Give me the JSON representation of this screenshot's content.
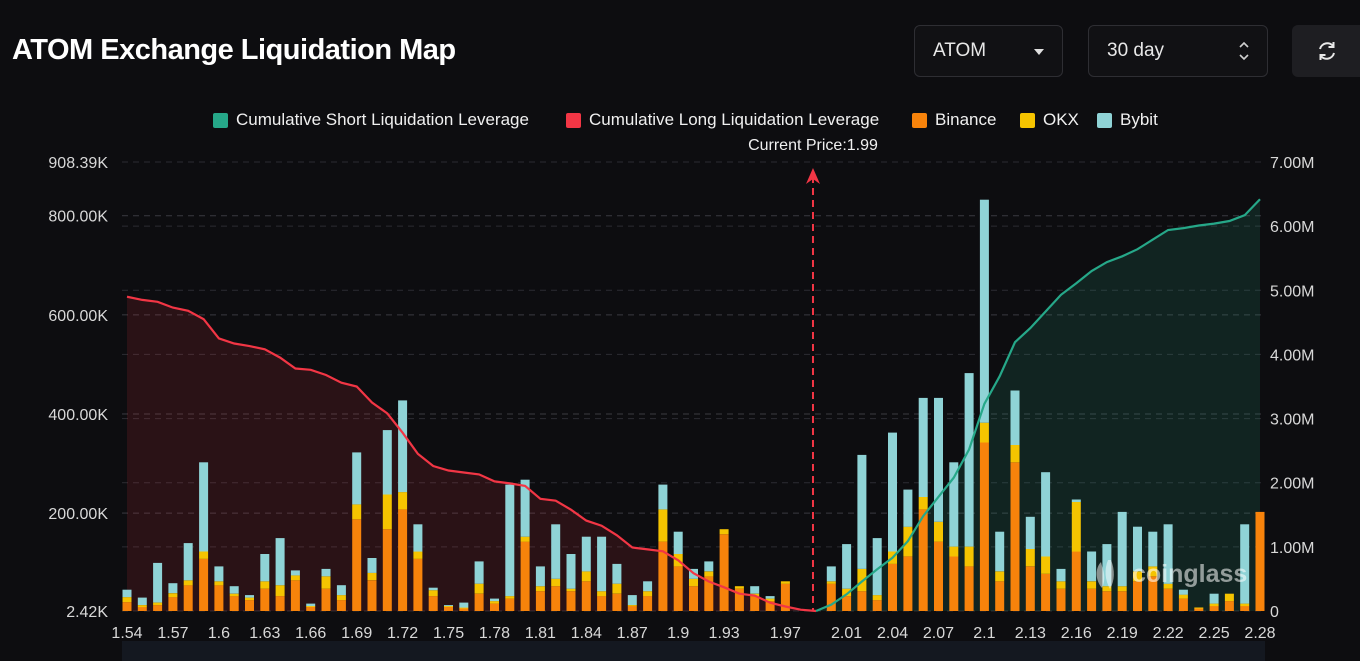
{
  "header": {
    "title": "ATOM Exchange Liquidation Map",
    "coin_select": "ATOM",
    "period_select": "30 day"
  },
  "legend": [
    {
      "label": "Cumulative Short Liquidation Leverage",
      "color": "#26a889"
    },
    {
      "label": "Cumulative Long Liquidation Leverage",
      "color": "#f23645"
    },
    {
      "label": "Binance",
      "color": "#f7830b"
    },
    {
      "label": "OKX",
      "color": "#f5c400"
    },
    {
      "label": "Bybit",
      "color": "#8fd3d6"
    }
  ],
  "watermark": "coinglass",
  "chart_data": {
    "type": "bar",
    "current_price_label": "Current Price:1.99",
    "current_price": 1.99,
    "y_left_ticks": [
      "908.39K",
      "800.00K",
      "600.00K",
      "400.00K",
      "200.00K",
      "2.42K"
    ],
    "y_right_ticks": [
      "7.00M",
      "6.00M",
      "5.00M",
      "4.00M",
      "3.00M",
      "2.00M",
      "1.00M",
      "0"
    ],
    "x_ticks": [
      "1.54",
      "1.57",
      "1.6",
      "1.63",
      "1.66",
      "1.69",
      "1.72",
      "1.75",
      "1.78",
      "1.81",
      "1.84",
      "1.87",
      "1.9",
      "1.93",
      "1.97",
      "2.01",
      "2.04",
      "2.07",
      "2.1",
      "2.13",
      "2.16",
      "2.19",
      "2.22",
      "2.25",
      "2.28"
    ],
    "ylim_left": [
      2420,
      908390
    ],
    "ylim_right": [
      0,
      7000000
    ],
    "x_range": [
      1.54,
      2.28
    ],
    "colors": {
      "binance": "#f7830b",
      "okx": "#f5c400",
      "bybit": "#8fd3d6",
      "long": "#f23645",
      "short": "#26a889"
    },
    "series_bars": {
      "price": [
        1.54,
        1.55,
        1.56,
        1.57,
        1.58,
        1.59,
        1.6,
        1.61,
        1.62,
        1.63,
        1.64,
        1.65,
        1.66,
        1.67,
        1.68,
        1.69,
        1.7,
        1.71,
        1.72,
        1.73,
        1.74,
        1.75,
        1.76,
        1.77,
        1.78,
        1.79,
        1.8,
        1.81,
        1.82,
        1.83,
        1.84,
        1.85,
        1.86,
        1.87,
        1.88,
        1.89,
        1.9,
        1.91,
        1.92,
        1.93,
        1.94,
        1.95,
        1.96,
        1.97,
        1.98,
        1.99,
        2.0,
        2.01,
        2.02,
        2.03,
        2.04,
        2.05,
        2.06,
        2.07,
        2.08,
        2.09,
        2.1,
        2.11,
        2.12,
        2.13,
        2.14,
        2.15,
        2.16,
        2.17,
        2.18,
        2.19,
        2.2,
        2.21,
        2.22,
        2.23,
        2.24,
        2.25,
        2.26,
        2.27,
        2.28
      ],
      "binance": [
        18000,
        8000,
        12000,
        28000,
        52000,
        105000,
        52000,
        30000,
        22000,
        45000,
        30000,
        62000,
        8000,
        45000,
        22000,
        185000,
        62000,
        165000,
        205000,
        105000,
        30000,
        8000,
        5000,
        35000,
        15000,
        25000,
        140000,
        40000,
        50000,
        40000,
        60000,
        30000,
        35000,
        10000,
        30000,
        140000,
        90000,
        50000,
        70000,
        155000,
        45000,
        30000,
        20000,
        55000,
        0,
        0,
        55000,
        30000,
        40000,
        22000,
        95000,
        110000,
        205000,
        140000,
        110000,
        90000,
        340000,
        60000,
        300000,
        90000,
        75000,
        45000,
        120000,
        45000,
        40000,
        40000,
        60000,
        70000,
        45000,
        25000,
        5000,
        10000,
        20000,
        10000,
        200000
      ],
      "okx": [
        10000,
        4000,
        5000,
        8000,
        10000,
        15000,
        8000,
        5000,
        5000,
        15000,
        22000,
        10000,
        2000,
        25000,
        10000,
        30000,
        15000,
        70000,
        35000,
        15000,
        12000,
        2000,
        2000,
        20000,
        5000,
        5000,
        10000,
        10000,
        15000,
        5000,
        20000,
        10000,
        20000,
        2000,
        10000,
        65000,
        25000,
        15000,
        10000,
        10000,
        5000,
        5000,
        5000,
        5000,
        0,
        0,
        5000,
        15000,
        45000,
        10000,
        25000,
        60000,
        25000,
        40000,
        20000,
        40000,
        40000,
        20000,
        35000,
        35000,
        35000,
        15000,
        100000,
        15000,
        10000,
        10000,
        20000,
        20000,
        10000,
        8000,
        2000,
        5000,
        15000,
        5000,
        0
      ],
      "bybit": [
        15000,
        15000,
        80000,
        20000,
        75000,
        180000,
        30000,
        15000,
        5000,
        55000,
        95000,
        10000,
        5000,
        15000,
        20000,
        105000,
        30000,
        130000,
        185000,
        55000,
        5000,
        2000,
        10000,
        45000,
        5000,
        225000,
        115000,
        40000,
        110000,
        70000,
        70000,
        110000,
        40000,
        20000,
        20000,
        50000,
        45000,
        20000,
        20000,
        0,
        0,
        15000,
        5000,
        0,
        0,
        0,
        30000,
        90000,
        230000,
        115000,
        240000,
        75000,
        200000,
        250000,
        170000,
        350000,
        450000,
        80000,
        110000,
        65000,
        170000,
        25000,
        5000,
        60000,
        85000,
        150000,
        90000,
        70000,
        120000,
        10000,
        0,
        20000,
        0,
        160000,
        0
      ]
    },
    "cum_long": {
      "price": [
        1.54,
        1.55,
        1.56,
        1.57,
        1.58,
        1.59,
        1.6,
        1.61,
        1.62,
        1.63,
        1.64,
        1.65,
        1.66,
        1.67,
        1.68,
        1.69,
        1.7,
        1.71,
        1.72,
        1.73,
        1.74,
        1.75,
        1.76,
        1.77,
        1.78,
        1.79,
        1.8,
        1.81,
        1.82,
        1.83,
        1.84,
        1.85,
        1.86,
        1.87,
        1.88,
        1.89,
        1.9,
        1.91,
        1.92,
        1.93,
        1.94,
        1.95,
        1.96,
        1.97,
        1.98,
        1.99
      ],
      "value": [
        4900000,
        4850000,
        4820000,
        4730000,
        4680000,
        4550000,
        4250000,
        4170000,
        4130000,
        4080000,
        3950000,
        3780000,
        3760000,
        3680000,
        3560000,
        3500000,
        3250000,
        3080000,
        2780000,
        2450000,
        2260000,
        2190000,
        2160000,
        2130000,
        2020000,
        1990000,
        1950000,
        1750000,
        1720000,
        1580000,
        1410000,
        1330000,
        1180000,
        990000,
        960000,
        930000,
        790000,
        590000,
        460000,
        370000,
        270000,
        240000,
        130000,
        70000,
        20000,
        0
      ]
    },
    "cum_short": {
      "price": [
        1.99,
        2.0,
        2.01,
        2.02,
        2.03,
        2.04,
        2.05,
        2.06,
        2.07,
        2.08,
        2.09,
        2.1,
        2.11,
        2.12,
        2.13,
        2.14,
        2.15,
        2.16,
        2.17,
        2.18,
        2.19,
        2.2,
        2.21,
        2.22,
        2.23,
        2.24,
        2.25,
        2.26,
        2.27,
        2.28
      ],
      "value": [
        0,
        100000,
        260000,
        460000,
        650000,
        830000,
        1090000,
        1480000,
        1780000,
        2080000,
        2520000,
        3230000,
        3660000,
        4190000,
        4410000,
        4670000,
        4930000,
        5110000,
        5300000,
        5440000,
        5530000,
        5640000,
        5790000,
        5940000,
        5970000,
        6010000,
        6040000,
        6080000,
        6170000,
        6420000
      ]
    }
  }
}
